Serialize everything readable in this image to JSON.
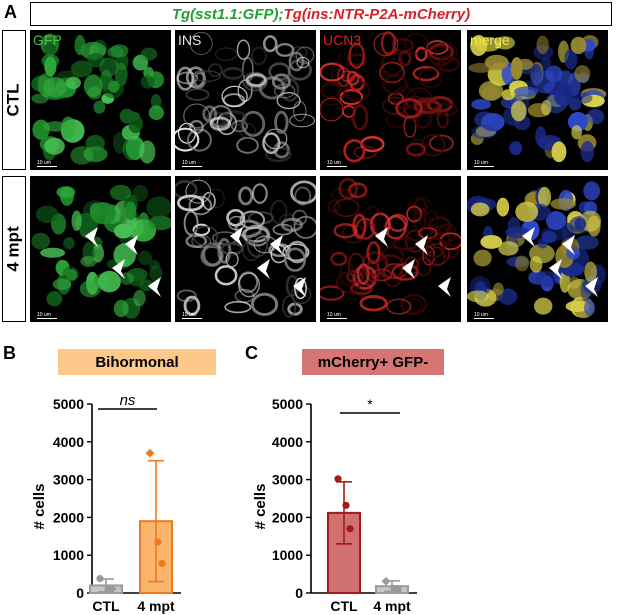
{
  "panel_letters": {
    "a": "A",
    "b": "B",
    "c": "C"
  },
  "figure_a": {
    "title_part1": "Tg(sst1.1:GFP);",
    "title_part2": "Tg(ins:NTR-P2A-mCherry)",
    "rows": [
      "CTL",
      "4 mpt"
    ],
    "channels": [
      {
        "label": "GFP",
        "color": "#3cc83c"
      },
      {
        "label": "INS",
        "color": "#e6e6e6"
      },
      {
        "label": "UCN3",
        "color": "#e02020"
      },
      {
        "label": "merge",
        "color": "#f2e84a"
      }
    ],
    "scale_bar_label": "10 um"
  },
  "chart_data": [
    {
      "type": "bar",
      "title": "Bihormonal",
      "title_bg": "#fcc98a",
      "ylabel": "# cells",
      "ylim": [
        0,
        5000
      ],
      "yticks": [
        0,
        1000,
        2000,
        3000,
        4000,
        5000
      ],
      "categories": [
        "CTL",
        "4 mpt"
      ],
      "values": [
        200,
        1900
      ],
      "error": [
        170,
        1600
      ],
      "bar_colors": [
        "#c6c6c6",
        "#fbb56e"
      ],
      "edge_colors": [
        "#9a9a9a",
        "#ee7a1e"
      ],
      "points": [
        [
          {
            "y": 380,
            "shape": "circle"
          },
          {
            "y": 120,
            "shape": "square"
          },
          {
            "y": 110,
            "shape": "diamond"
          }
        ],
        [
          {
            "y": 3700,
            "shape": "diamond"
          },
          {
            "y": 1350,
            "shape": "circle"
          },
          {
            "y": 780,
            "shape": "circle"
          }
        ]
      ],
      "significance": "ns"
    },
    {
      "type": "bar",
      "title": "mCherry+ GFP-",
      "title_bg": "#d77474",
      "ylabel": "# cells",
      "ylim": [
        0,
        5000
      ],
      "yticks": [
        0,
        1000,
        2000,
        3000,
        4000,
        5000
      ],
      "categories": [
        "CTL",
        "4 mpt"
      ],
      "values": [
        2120,
        180
      ],
      "error": [
        820,
        140
      ],
      "bar_colors": [
        "#d07070",
        "#c6c6c6"
      ],
      "edge_colors": [
        "#a31a1a",
        "#9a9a9a"
      ],
      "points": [
        [
          {
            "y": 3020,
            "shape": "circle"
          },
          {
            "y": 2320,
            "shape": "circle"
          },
          {
            "y": 1700,
            "shape": "circle"
          }
        ],
        [
          {
            "y": 310,
            "shape": "diamond"
          },
          {
            "y": 120,
            "shape": "square"
          },
          {
            "y": 90,
            "shape": "circle"
          }
        ]
      ],
      "significance": "*"
    }
  ]
}
